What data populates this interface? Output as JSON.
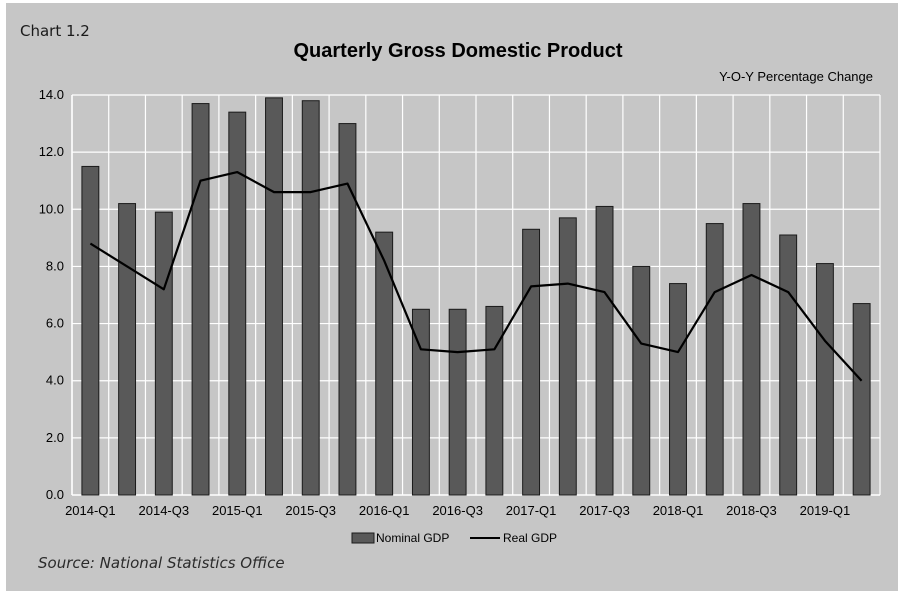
{
  "chart_label": "Chart 1.2",
  "source": "Source: National Statistics Office",
  "colors": {
    "background": "#c6c6c6",
    "bar_fill": "#595959",
    "bar_stroke": "#1a1a1a",
    "line": "#000000",
    "grid": "#ffffff"
  },
  "chart_data": {
    "type": "bar",
    "title": "Quarterly Gross Domestic Product",
    "subtitle": "Y-O-Y Percentage Change",
    "categories": [
      "2014-Q1",
      "2014-Q2",
      "2014-Q3",
      "2014-Q4",
      "2015-Q1",
      "2015-Q2",
      "2015-Q3",
      "2015-Q4",
      "2016-Q1",
      "2016-Q2",
      "2016-Q3",
      "2016-Q4",
      "2017-Q1",
      "2017-Q2",
      "2017-Q3",
      "2017-Q4",
      "2018-Q1",
      "2018-Q2",
      "2018-Q3",
      "2018-Q4",
      "2019-Q1",
      "2019-Q2"
    ],
    "x_tick_labels": [
      "2014-Q1",
      "2014-Q3",
      "2015-Q1",
      "2015-Q3",
      "2016-Q1",
      "2016-Q3",
      "2017-Q1",
      "2017-Q3",
      "2018-Q1",
      "2018-Q3",
      "2019-Q1"
    ],
    "series": [
      {
        "name": "Nominal GDP",
        "type": "bar",
        "values": [
          11.5,
          10.2,
          9.9,
          13.7,
          13.4,
          13.9,
          13.8,
          13.0,
          9.2,
          6.5,
          6.5,
          6.6,
          9.3,
          9.7,
          10.1,
          8.0,
          7.4,
          9.5,
          10.2,
          9.1,
          8.1,
          6.7
        ]
      },
      {
        "name": "Real GDP",
        "type": "line",
        "values": [
          8.8,
          8.0,
          7.2,
          11.0,
          11.3,
          10.6,
          10.6,
          10.9,
          8.2,
          5.1,
          5.0,
          5.1,
          7.3,
          7.4,
          7.1,
          5.3,
          5.0,
          7.1,
          7.7,
          7.1,
          5.4,
          4.0
        ]
      }
    ],
    "ylim": [
      0,
      14
    ],
    "y_ticks": [
      "0.0",
      "2.0",
      "4.0",
      "6.0",
      "8.0",
      "10.0",
      "12.0",
      "14.0"
    ],
    "grid": true,
    "legend": "bottom"
  }
}
